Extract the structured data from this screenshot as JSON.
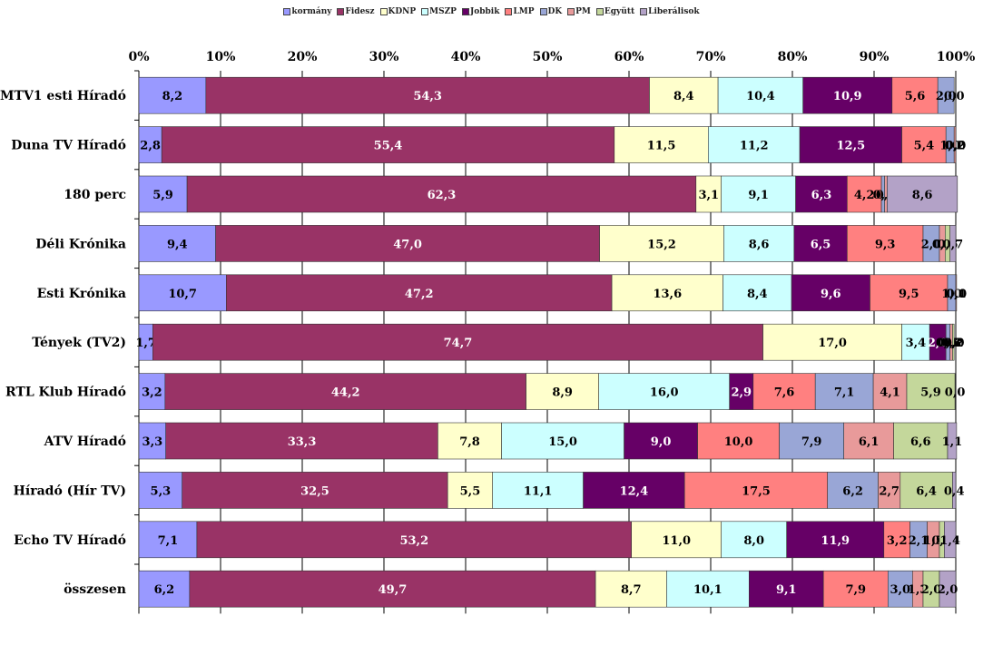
{
  "chart_data": {
    "type": "bar",
    "orientation": "horizontal",
    "stacked": "percent",
    "title": "",
    "xlabel": "",
    "ylabel": "",
    "xlim": [
      0,
      100
    ],
    "x_ticks": [
      "0%",
      "10%",
      "20%",
      "30%",
      "40%",
      "50%",
      "60%",
      "70%",
      "80%",
      "90%",
      "100%"
    ],
    "grid": "vertical",
    "legend_position": "top",
    "categories": [
      "MTV1 esti Híradó",
      "Duna TV Híradó",
      "180 perc",
      "Déli Krónika",
      "Esti Krónika",
      "Tények (TV2)",
      "RTL Klub Híradó",
      "ATV Híradó",
      "Híradó (Hír TV)",
      "Echo TV Híradó",
      "összesen"
    ],
    "series": [
      {
        "name": "kormány",
        "color": "#9999ff",
        "values": [
          8.2,
          2.8,
          5.9,
          9.4,
          10.7,
          1.7,
          3.2,
          3.3,
          5.3,
          7.1,
          6.2
        ]
      },
      {
        "name": "Fidesz",
        "color": "#993366",
        "values": [
          54.3,
          55.4,
          62.3,
          47.0,
          47.2,
          74.7,
          44.2,
          33.3,
          32.5,
          53.2,
          49.7
        ]
      },
      {
        "name": "KDNP",
        "color": "#ffffcc",
        "values": [
          8.4,
          11.5,
          3.1,
          15.2,
          13.6,
          17.0,
          8.9,
          7.8,
          5.5,
          11.0,
          8.7
        ]
      },
      {
        "name": "MSZP",
        "color": "#ccffff",
        "values": [
          10.4,
          11.2,
          9.1,
          8.6,
          8.4,
          3.4,
          16.0,
          15.0,
          11.1,
          8.0,
          10.1
        ]
      },
      {
        "name": "Jobbik",
        "color": "#660066",
        "values": [
          10.9,
          12.5,
          6.3,
          6.5,
          9.6,
          2.0,
          2.9,
          9.0,
          12.4,
          11.9,
          9.1
        ]
      },
      {
        "name": "LMP",
        "color": "#ff8080",
        "values": [
          5.6,
          5.4,
          4.2,
          9.3,
          9.5,
          0.0,
          7.6,
          10.0,
          17.5,
          3.2,
          7.9
        ]
      },
      {
        "name": "DK",
        "color": "#99a6d6",
        "values": [
          2.0,
          1.0,
          0.4,
          2.0,
          1.0,
          0.5,
          7.1,
          7.9,
          6.2,
          2.1,
          3.0
        ]
      },
      {
        "name": "PM",
        "color": "#e89a9a",
        "values": [
          0.0,
          0.2,
          0.3,
          0.7,
          0.1,
          0.3,
          4.1,
          6.1,
          2.7,
          1.5,
          1.3
        ]
      },
      {
        "name": "Együtt",
        "color": "#c4d79b",
        "values": [
          0.0,
          0.0,
          0.0,
          0.6,
          0.0,
          0.2,
          5.9,
          6.6,
          6.4,
          0.6,
          2.0
        ]
      },
      {
        "name": "Liberálisok",
        "color": "#b3a2c7",
        "values": [
          0.0,
          0.0,
          8.6,
          0.7,
          0.0,
          0.0,
          0.0,
          1.1,
          0.4,
          1.4,
          2.0
        ]
      }
    ],
    "value_labels": [
      [
        "8,2",
        "54,3",
        "8,4",
        "10,4",
        "10,9",
        "5,6",
        "2,0",
        "0,0",
        "",
        ""
      ],
      [
        "2,8",
        "55,4",
        "11,5",
        "11,2",
        "12,5",
        "5,4",
        "1,0",
        "0,2",
        "0,0",
        ""
      ],
      [
        "5,9",
        "62,3",
        "3,1",
        "9,1",
        "6,3",
        "4,2",
        "0,4",
        "0,3",
        "",
        "8,6"
      ],
      [
        "9,4",
        "47,0",
        "15,2",
        "8,6",
        "6,5",
        "9,3",
        "2,0",
        "0,7",
        "0,6",
        "0,7"
      ],
      [
        "10,7",
        "47,2",
        "13,6",
        "8,4",
        "9,6",
        "9,5",
        "1,0",
        "0,1",
        "0,0",
        ""
      ],
      [
        "1,7",
        "74,7",
        "17,0",
        "3,4",
        "2,0",
        "0,0",
        "0,5",
        "0,3",
        "0,2",
        "0,0"
      ],
      [
        "3,2",
        "44,2",
        "8,9",
        "16,0",
        "2,9",
        "7,6",
        "7,1",
        "4,1",
        "5,9",
        "0,0"
      ],
      [
        "3,3",
        "33,3",
        "7,8",
        "15,0",
        "9,0",
        "10,0",
        "7,9",
        "6,1",
        "6,6",
        "1,1"
      ],
      [
        "5,3",
        "32,5",
        "5,5",
        "11,1",
        "12,4",
        "17,5",
        "6,2",
        "2,7",
        "6,4",
        "0,4"
      ],
      [
        "7,1",
        "53,2",
        "11,0",
        "8,0",
        "11,9",
        "3,2",
        "2,1",
        "1,5",
        "0,6",
        "1,4"
      ],
      [
        "6,2",
        "49,7",
        "8,7",
        "10,1",
        "9,1",
        "7,9",
        "3,0",
        "1,3",
        "2,0",
        "2,0"
      ]
    ]
  }
}
